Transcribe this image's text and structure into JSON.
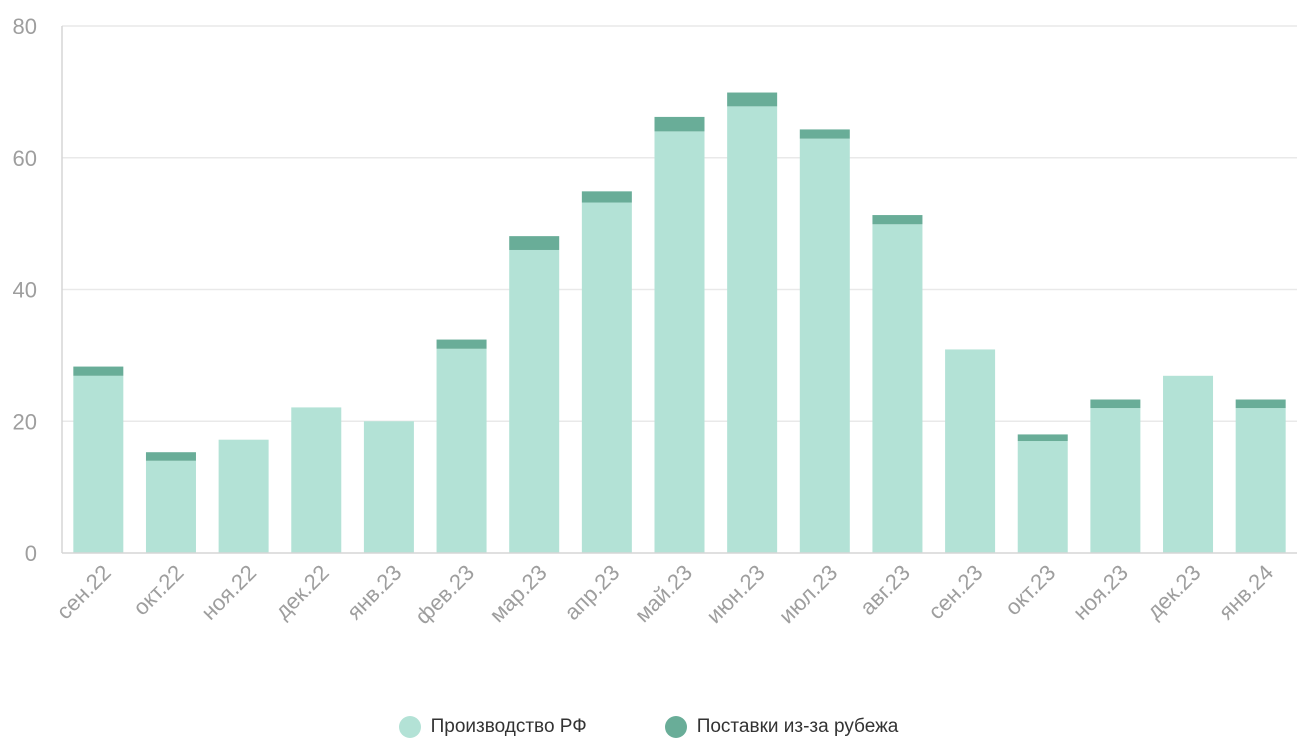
{
  "chart_data": {
    "type": "bar",
    "stacked": true,
    "categories": [
      "сен.22",
      "окт.22",
      "ноя.22",
      "дек.22",
      "янв.23",
      "фев.23",
      "мар.23",
      "апр.23",
      "май.23",
      "июн.23",
      "июл.23",
      "авг.23",
      "сен.23",
      "окт.23",
      "ноя.23",
      "дек.23",
      "янв.24"
    ],
    "series": [
      {
        "name": "Производство РФ",
        "color": "#b3e2d6",
        "values": [
          26.9,
          14,
          17.2,
          22.1,
          20,
          31,
          46,
          53.2,
          64,
          67.8,
          62.9,
          49.9,
          30.9,
          17,
          22,
          26.9,
          22
        ]
      },
      {
        "name": "Поставки из-за рубежа",
        "color": "#69ad98",
        "values": [
          1.4,
          1.3,
          0,
          0,
          0,
          1.4,
          2.1,
          1.7,
          2.2,
          2.1,
          1.4,
          1.4,
          0,
          1,
          1.3,
          0,
          1.3
        ]
      }
    ],
    "ylim": [
      0,
      80
    ],
    "yticks": [
      "0",
      "20",
      "40",
      "60",
      "80"
    ],
    "grid": true,
    "legend_position": "bottom",
    "title": "",
    "xlabel": "",
    "ylabel": ""
  }
}
